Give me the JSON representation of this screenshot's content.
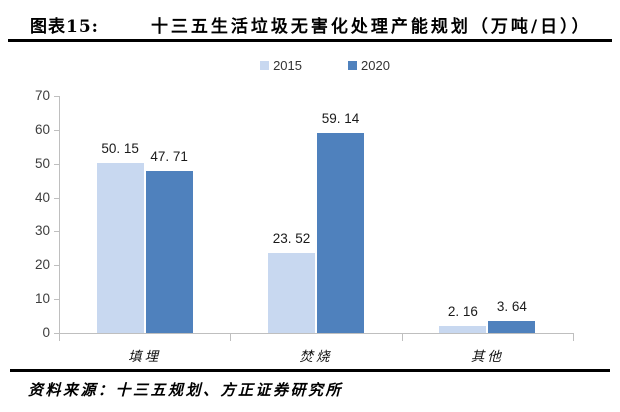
{
  "header": {
    "figure_label": "图表15:",
    "title": "十三五生活垃圾无害化处理产能规划（万吨/日））"
  },
  "chart_data": {
    "type": "bar",
    "title": "十三五生活垃圾无害化处理产能规划（万吨/日）",
    "categories": [
      "填埋",
      "焚烧",
      "其他"
    ],
    "series": [
      {
        "name": "2015",
        "color": "#c8d8f0",
        "values": [
          50.15,
          23.52,
          2.16
        ],
        "labels": [
          "50. 15",
          "23. 52",
          "2. 16"
        ]
      },
      {
        "name": "2020",
        "color": "#4f81bd",
        "values": [
          47.71,
          59.14,
          3.64
        ],
        "labels": [
          "47. 71",
          "59. 14",
          "3. 64"
        ]
      }
    ],
    "ylim": [
      0,
      70
    ],
    "yticks": [
      0,
      10,
      20,
      30,
      40,
      50,
      60,
      70
    ],
    "grid": false,
    "legend_position": "top",
    "axis_color": "#bfbfbf"
  },
  "footer": {
    "source": "资料来源：十三五规划、方正证券研究所"
  }
}
